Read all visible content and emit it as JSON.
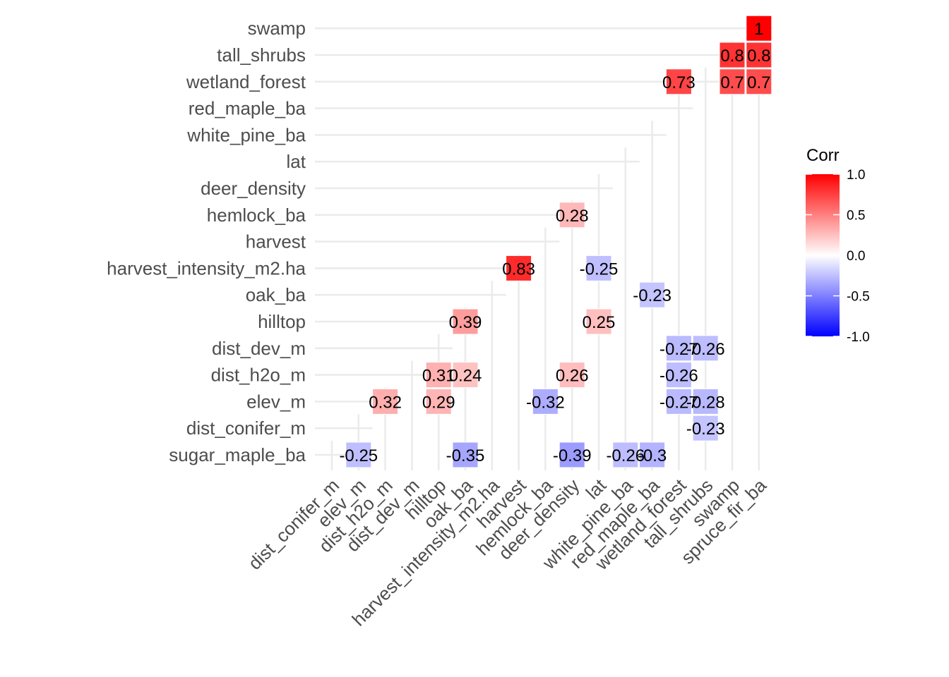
{
  "chart_data": {
    "type": "heatmap",
    "title": "",
    "xlabel": "",
    "ylabel": "",
    "x_categories": [
      "dist_conifer_m",
      "elev_m",
      "dist_h2o_m",
      "dist_dev_m",
      "hilltop",
      "oak_ba",
      "harvest_intensity_m2.ha",
      "harvest",
      "hemlock_ba",
      "deer_density",
      "lat",
      "white_pine_ba",
      "red_maple_ba",
      "wetland_forest",
      "tall_shrubs",
      "swamp",
      "spruce_fir_ba"
    ],
    "y_categories": [
      "sugar_maple_ba",
      "dist_conifer_m",
      "elev_m",
      "dist_h2o_m",
      "dist_dev_m",
      "hilltop",
      "oak_ba",
      "harvest_intensity_m2.ha",
      "harvest",
      "hemlock_ba",
      "deer_density",
      "lat",
      "white_pine_ba",
      "red_maple_ba",
      "wetland_forest",
      "tall_shrubs",
      "swamp"
    ],
    "cells": [
      {
        "x": "elev_m",
        "y": "sugar_maple_ba",
        "value": -0.25,
        "label": "-0.25"
      },
      {
        "x": "oak_ba",
        "y": "sugar_maple_ba",
        "value": -0.35,
        "label": "-0.35"
      },
      {
        "x": "deer_density",
        "y": "sugar_maple_ba",
        "value": -0.39,
        "label": "-0.39"
      },
      {
        "x": "white_pine_ba",
        "y": "sugar_maple_ba",
        "value": -0.26,
        "label": "-0.26"
      },
      {
        "x": "red_maple_ba",
        "y": "sugar_maple_ba",
        "value": -0.3,
        "label": "-0.3"
      },
      {
        "x": "tall_shrubs",
        "y": "dist_conifer_m",
        "value": -0.23,
        "label": "-0.23"
      },
      {
        "x": "dist_h2o_m",
        "y": "elev_m",
        "value": 0.32,
        "label": "0.32"
      },
      {
        "x": "hilltop",
        "y": "elev_m",
        "value": 0.29,
        "label": "0.29"
      },
      {
        "x": "hemlock_ba",
        "y": "elev_m",
        "value": -0.32,
        "label": "-0.32"
      },
      {
        "x": "wetland_forest",
        "y": "elev_m",
        "value": -0.27,
        "label": "-0.27"
      },
      {
        "x": "tall_shrubs",
        "y": "elev_m",
        "value": -0.28,
        "label": "-0.28"
      },
      {
        "x": "hilltop",
        "y": "dist_h2o_m",
        "value": 0.31,
        "label": "0.31"
      },
      {
        "x": "oak_ba",
        "y": "dist_h2o_m",
        "value": 0.24,
        "label": "0.24"
      },
      {
        "x": "deer_density",
        "y": "dist_h2o_m",
        "value": 0.26,
        "label": "0.26"
      },
      {
        "x": "wetland_forest",
        "y": "dist_h2o_m",
        "value": -0.26,
        "label": "-0.26"
      },
      {
        "x": "wetland_forest",
        "y": "dist_dev_m",
        "value": -0.27,
        "label": "-0.27"
      },
      {
        "x": "tall_shrubs",
        "y": "dist_dev_m",
        "value": -0.26,
        "label": "-0.26"
      },
      {
        "x": "oak_ba",
        "y": "hilltop",
        "value": 0.39,
        "label": "0.39"
      },
      {
        "x": "lat",
        "y": "hilltop",
        "value": 0.25,
        "label": "0.25"
      },
      {
        "x": "red_maple_ba",
        "y": "oak_ba",
        "value": -0.23,
        "label": "-0.23"
      },
      {
        "x": "harvest",
        "y": "harvest_intensity_m2.ha",
        "value": 0.83,
        "label": "0.83"
      },
      {
        "x": "lat",
        "y": "harvest_intensity_m2.ha",
        "value": -0.25,
        "label": "-0.25"
      },
      {
        "x": "deer_density",
        "y": "hemlock_ba",
        "value": 0.28,
        "label": "0.28"
      },
      {
        "x": "wetland_forest",
        "y": "wetland_forest",
        "value": 0.73,
        "label": "0.73"
      },
      {
        "x": "swamp",
        "y": "wetland_forest",
        "value": 0.7,
        "label": "0.7"
      },
      {
        "x": "spruce_fir_ba",
        "y": "wetland_forest",
        "value": 0.7,
        "label": "0.7"
      },
      {
        "x": "swamp",
        "y": "tall_shrubs",
        "value": 0.8,
        "label": "0.8"
      },
      {
        "x": "spruce_fir_ba",
        "y": "tall_shrubs",
        "value": 0.8,
        "label": "0.8"
      },
      {
        "x": "spruce_fir_ba",
        "y": "swamp",
        "value": 1.0,
        "label": "1"
      }
    ],
    "legend": {
      "title": "Corr",
      "placement": "right",
      "ticks": [
        {
          "value": 1.0,
          "label": "1.0"
        },
        {
          "value": 0.5,
          "label": "0.5"
        },
        {
          "value": 0.0,
          "label": "0.0"
        },
        {
          "value": -0.5,
          "label": "-0.5"
        },
        {
          "value": -1.0,
          "label": "-1.0"
        }
      ],
      "range": [
        -1,
        1
      ]
    },
    "colors": {
      "low": "#0000ff",
      "mid": "#ffffff",
      "high": "#ff0000",
      "grid": "#ebebeb"
    },
    "grid": true,
    "lower_triangle_gridlines": true
  }
}
